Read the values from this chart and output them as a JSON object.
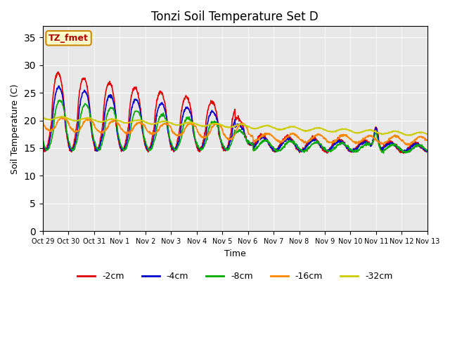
{
  "title": "Tonzi Soil Temperature Set D",
  "xlabel": "Time",
  "ylabel": "Soil Temperature (C)",
  "ylim": [
    0,
    37
  ],
  "yticks": [
    0,
    5,
    10,
    15,
    20,
    25,
    30,
    35
  ],
  "annotation_text": "TZ_fmet",
  "annotation_color": "#aa0000",
  "annotation_bg": "#ffffcc",
  "annotation_border": "#cc8800",
  "plot_bg": "#e8e8e8",
  "fig_bg": "#ffffff",
  "line_colors": {
    "-2cm": "#dd0000",
    "-4cm": "#0000cc",
    "-8cm": "#00aa00",
    "-16cm": "#ff8800",
    "-32cm": "#cccc00"
  },
  "legend_labels": [
    "-2cm",
    "-4cm",
    "-8cm",
    "-16cm",
    "-32cm"
  ],
  "xtick_labels": [
    "Oct 29",
    "Oct 30",
    "Oct 31",
    "Nov 1",
    "Nov 2",
    "Nov 3",
    "Nov 4",
    "Nov 5",
    "Nov 6",
    "Nov 7",
    "Nov 8",
    "Nov 9",
    "Nov 10",
    "Nov 11",
    "Nov 12",
    "Nov 13"
  ],
  "num_points": 1440
}
